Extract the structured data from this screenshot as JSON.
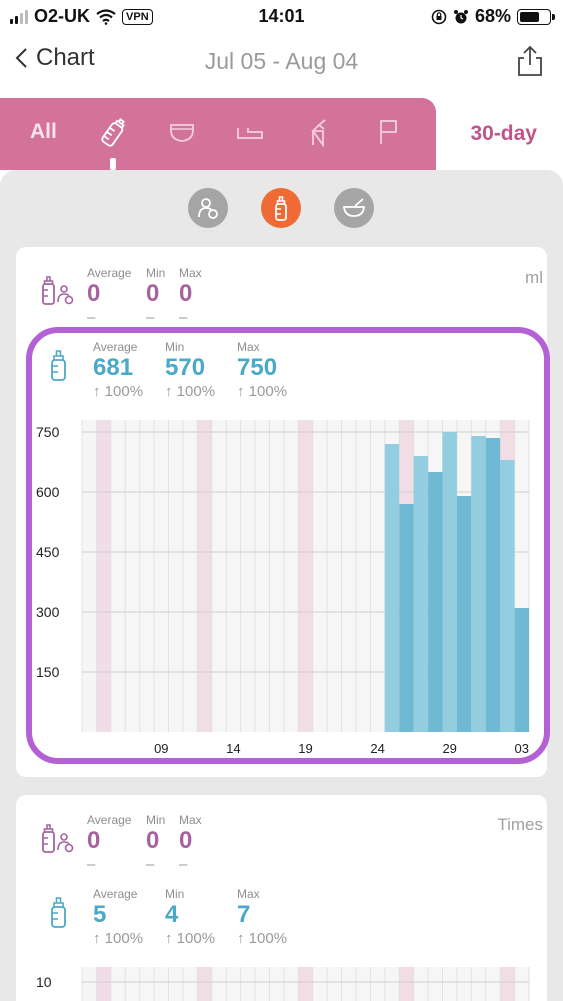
{
  "status_bar": {
    "carrier": "O2-UK",
    "vpn": "VPN",
    "time": "14:01",
    "battery": "68%",
    "battery_level": 0.68
  },
  "nav": {
    "back_label": "Chart",
    "date_range": "Jul 05 - Aug 04",
    "icons": [
      "chevron-left-icon",
      "share-icon"
    ]
  },
  "tabs": {
    "all_label": "All",
    "items": [
      "bottle-icon",
      "diaper-icon",
      "sleep-icon",
      "pump-icon",
      "flag-icon"
    ],
    "range_label": "30-day"
  },
  "subtabs": [
    "breastfeed-icon",
    "bottle-icon",
    "solids-bowl-icon"
  ],
  "colors": {
    "tab_bg": "#d3739c",
    "accent_orange": "#ef6a35",
    "purple": "#a6639f",
    "teal": "#4aa9c7",
    "highlight": "#b561d6"
  },
  "volume_card": {
    "unit": "ml",
    "breast": {
      "average_label": "Average",
      "average": "0",
      "average_sub": "–",
      "min_label": "Min",
      "min": "0",
      "min_sub": "–",
      "max_label": "Max",
      "max": "0",
      "max_sub": "–"
    },
    "bottle": {
      "average_label": "Average",
      "average": "681",
      "average_sub": "↑ 100%",
      "min_label": "Min",
      "min": "570",
      "min_sub": "↑ 100%",
      "max_label": "Max",
      "max": "750",
      "max_sub": "↑ 100%"
    }
  },
  "times_card": {
    "unit": "Times",
    "breast": {
      "average_label": "Average",
      "average": "0",
      "average_sub": "–",
      "min_label": "Min",
      "min": "0",
      "min_sub": "–",
      "max_label": "Max",
      "max": "0",
      "max_sub": "–"
    },
    "bottle": {
      "average_label": "Average",
      "average": "5",
      "average_sub": "↑ 100%",
      "min_label": "Min",
      "min": "4",
      "min_sub": "↑ 100%",
      "max_label": "Max",
      "max": "7",
      "max_sub": "↑ 100%"
    }
  },
  "chart_data": [
    {
      "type": "bar",
      "yticks": [
        150,
        300,
        450,
        600,
        750
      ],
      "ylim": [
        0,
        780
      ],
      "xtick_labels": [
        "09",
        "14",
        "19",
        "24",
        "29",
        "03"
      ],
      "xtick_days": [
        5,
        10,
        15,
        20,
        25,
        30
      ],
      "days": 31,
      "weekend_days": [
        1,
        8,
        15,
        22,
        29
      ],
      "bars": [
        {
          "day": 21,
          "value": 720
        },
        {
          "day": 22,
          "value": 570
        },
        {
          "day": 23,
          "value": 690
        },
        {
          "day": 24,
          "value": 650
        },
        {
          "day": 25,
          "value": 750
        },
        {
          "day": 26,
          "value": 590
        },
        {
          "day": 27,
          "value": 740
        },
        {
          "day": 28,
          "value": 735
        },
        {
          "day": 29,
          "value": 680
        },
        {
          "day": 30,
          "value": 310
        }
      ]
    },
    {
      "type": "bar",
      "yticks": [
        10
      ],
      "weekend_days": [
        1,
        8,
        15,
        22,
        29
      ],
      "days": 31
    }
  ]
}
